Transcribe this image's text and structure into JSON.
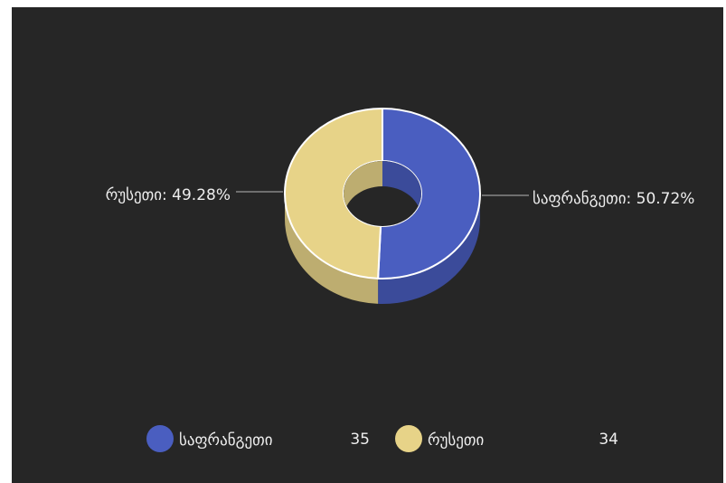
{
  "chart_data": {
    "type": "donut3d",
    "categories": [
      "საფრანგეთი",
      "რუსეთი"
    ],
    "values": [
      35,
      34
    ],
    "percentages": [
      50.72,
      49.28
    ],
    "data_labels": [
      "საფრანგეთი: 50.72%",
      "რუსეთი: 49.28%"
    ],
    "colors": [
      "#4a5ec0",
      "#e7d388"
    ],
    "side_colors": [
      "#3b4b9a",
      "#bdad70"
    ],
    "legend": "bottom"
  }
}
